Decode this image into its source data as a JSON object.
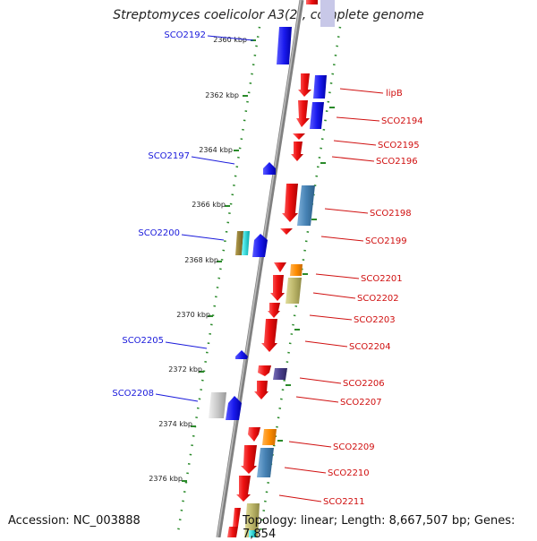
{
  "title": "Streptomyces coelicolor A3(2), complete genome",
  "footer": {
    "accession": "Accession: NC_003888",
    "summary": "Topology: linear; Length: 8,667,507 bp; Genes: 7,854"
  },
  "ticks": [
    "2360 kbp",
    "2362 kbp",
    "2364 kbp",
    "2366 kbp",
    "2368 kbp",
    "2370 kbp",
    "2372 kbp",
    "2374 kbp",
    "2376 kbp"
  ],
  "left_labels": [
    "SCO2192",
    "SCO2197",
    "SCO2200",
    "SCO2205",
    "SCO2208"
  ],
  "right_labels": [
    "lipB",
    "SCO2194",
    "SCO2195",
    "SCO2196",
    "SCO2198",
    "SCO2199",
    "SCO2201",
    "SCO2202",
    "SCO2203",
    "SCO2204",
    "SCO2206",
    "SCO2207",
    "SCO2209",
    "SCO2210",
    "SCO2211"
  ],
  "colors": {
    "backbone": "#808080",
    "dotted": "#2a8a2a",
    "red_gene": "#ee1111",
    "blue_gene": "#1a1aee",
    "steel_gene": "#4682b4",
    "khaki_gene": "#bdb76b",
    "orange_gene": "#ff8c00",
    "purple_gene": "#483d8b",
    "grey_gene": "#c0c0c0"
  }
}
